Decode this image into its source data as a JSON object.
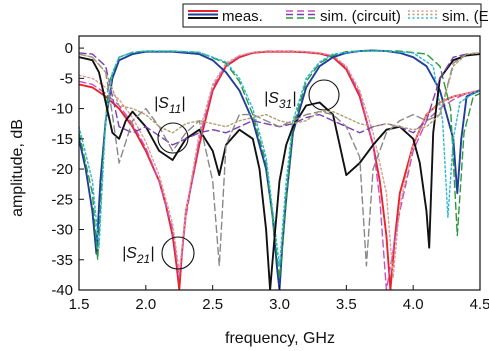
{
  "chart_data": {
    "type": "line",
    "xlabel": "frequency, GHz",
    "ylabel": "amplitude, dB",
    "xlim": [
      1.5,
      4.5
    ],
    "ylim": [
      -40,
      2
    ],
    "xticks": [
      "1.5",
      "2.0",
      "2.5",
      "3.0",
      "3.5",
      "4.0",
      "4.5"
    ],
    "yticks": [
      "0",
      "-5",
      "-10",
      "-15",
      "-20",
      "-25",
      "-30",
      "-35",
      "-40"
    ],
    "grid": false,
    "legend_position": "top",
    "legend": [
      {
        "label": "meas.",
        "style": "solid",
        "colors": [
          "#e8232a",
          "#1f3f9a",
          "#111111"
        ]
      },
      {
        "label": "sim. (circuit)",
        "style": "dashed",
        "colors": [
          "#c850c0",
          "#7a3fb0",
          "#2a9a3a"
        ]
      },
      {
        "label": "sim. (EM)",
        "style": "dotted",
        "colors": [
          "#e09a90",
          "#b0a070",
          "#2bb8d8"
        ]
      }
    ],
    "annotations": [
      {
        "text": "|S11|",
        "x": 2.18,
        "y": -17
      },
      {
        "text": "|S31|",
        "x": 3.4,
        "y": -9.5
      },
      {
        "text": "|S21|",
        "x": 2.26,
        "y": -36.5
      }
    ],
    "series": [
      {
        "param": "S21",
        "source": "meas.",
        "color": "#e8232a",
        "dash": "solid",
        "x": [
          1.5,
          1.6,
          1.7,
          1.8,
          1.9,
          2.0,
          2.1,
          2.15,
          2.2,
          2.23,
          2.25,
          2.27,
          2.3,
          2.4,
          2.5,
          2.6,
          2.7,
          2.8,
          2.9,
          3.0,
          3.1,
          3.2,
          3.3,
          3.4,
          3.5,
          3.6,
          3.7,
          3.75,
          3.8,
          3.83,
          3.86,
          3.9,
          4.0,
          4.1,
          4.2,
          4.3,
          4.4,
          4.5
        ],
        "y": [
          -6,
          -6.5,
          -8,
          -10,
          -13,
          -17,
          -22,
          -26,
          -31,
          -36,
          -40,
          -34,
          -27,
          -16,
          -7,
          -3,
          -1.5,
          -0.8,
          -0.6,
          -0.6,
          -0.6,
          -0.7,
          -0.9,
          -1.5,
          -3.5,
          -8,
          -16,
          -22,
          -31,
          -40,
          -32,
          -24,
          -16,
          -11,
          -9,
          -8,
          -7.5,
          -7
        ]
      },
      {
        "param": "S21",
        "source": "sim. (circuit)",
        "color": "#c850c0",
        "dash": "dashed",
        "x": [
          1.5,
          1.6,
          1.7,
          1.8,
          1.9,
          2.0,
          2.1,
          2.2,
          2.25,
          2.3,
          2.4,
          2.5,
          2.6,
          2.7,
          2.8,
          2.9,
          3.0,
          3.1,
          3.2,
          3.3,
          3.4,
          3.5,
          3.6,
          3.7,
          3.75,
          3.8,
          3.9,
          4.0,
          4.1,
          4.2,
          4.3,
          4.4,
          4.5
        ],
        "y": [
          -5.5,
          -6,
          -7.5,
          -9.5,
          -12.5,
          -16.5,
          -22,
          -30,
          -38,
          -28,
          -15,
          -6.5,
          -2.8,
          -1.3,
          -0.7,
          -0.5,
          -0.5,
          -0.5,
          -0.6,
          -0.8,
          -1.3,
          -3.2,
          -7.5,
          -16,
          -25,
          -40,
          -27,
          -17,
          -12,
          -10,
          -8.5,
          -7.5,
          -7
        ]
      },
      {
        "param": "S21",
        "source": "sim. (EM)",
        "color": "#e09a90",
        "dash": "dotted",
        "x": [
          1.5,
          1.6,
          1.7,
          1.8,
          1.9,
          2.0,
          2.1,
          2.2,
          2.25,
          2.3,
          2.4,
          2.5,
          2.6,
          2.7,
          2.8,
          2.9,
          3.0,
          3.1,
          3.2,
          3.3,
          3.4,
          3.5,
          3.6,
          3.7,
          3.8,
          3.85,
          3.9,
          4.0,
          4.1,
          4.2,
          4.3,
          4.4,
          4.5
        ],
        "y": [
          -4.5,
          -5,
          -6.5,
          -8.5,
          -11.5,
          -15.5,
          -21,
          -29,
          -37,
          -27,
          -14,
          -6,
          -2.5,
          -1.2,
          -0.7,
          -0.5,
          -0.5,
          -0.5,
          -0.6,
          -0.8,
          -1.2,
          -3,
          -7,
          -14,
          -24,
          -38,
          -26,
          -16,
          -11,
          -9,
          -8,
          -7.5,
          -7
        ]
      },
      {
        "param": "S31",
        "source": "meas.",
        "color": "#1f3f9a",
        "dash": "solid",
        "x": [
          1.5,
          1.55,
          1.6,
          1.63,
          1.66,
          1.7,
          1.75,
          1.8,
          1.9,
          2.0,
          2.2,
          2.4,
          2.5,
          2.6,
          2.7,
          2.8,
          2.9,
          2.95,
          2.98,
          3.0,
          3.02,
          3.05,
          3.1,
          3.2,
          3.3,
          3.4,
          3.5,
          3.6,
          3.7,
          3.8,
          3.9,
          4.0,
          4.1,
          4.2,
          4.3,
          4.33,
          4.36,
          4.4,
          4.5
        ],
        "y": [
          -15,
          -20,
          -27,
          -34,
          -22,
          -12,
          -5,
          -2,
          -1,
          -0.6,
          -0.6,
          -1,
          -2,
          -4,
          -7,
          -12,
          -20,
          -28,
          -36,
          -40,
          -33,
          -25,
          -14,
          -6.5,
          -3,
          -1.5,
          -0.8,
          -0.5,
          -0.4,
          -0.5,
          -0.8,
          -1.5,
          -3,
          -7,
          -15,
          -24,
          -15,
          -8,
          -7
        ]
      },
      {
        "param": "S31",
        "source": "sim. (circuit)",
        "color": "#2a9a3a",
        "dash": "dashed",
        "x": [
          1.5,
          1.6,
          1.64,
          1.68,
          1.72,
          1.8,
          1.9,
          2.0,
          2.2,
          2.4,
          2.6,
          2.7,
          2.8,
          2.9,
          3.0,
          3.05,
          3.1,
          3.2,
          3.3,
          3.4,
          3.5,
          3.7,
          3.9,
          4.1,
          4.2,
          4.28,
          4.33,
          4.38,
          4.45,
          4.5
        ],
        "y": [
          -14,
          -24,
          -35,
          -18,
          -6,
          -1.5,
          -0.7,
          -0.5,
          -0.5,
          -0.7,
          -2.5,
          -5.5,
          -11,
          -19,
          -38,
          -25,
          -13,
          -5.5,
          -2.5,
          -1.2,
          -0.6,
          -0.4,
          -0.5,
          -1,
          -3,
          -10,
          -31,
          -14,
          -8,
          -7.5
        ]
      },
      {
        "param": "S31",
        "source": "sim. (EM)",
        "color": "#2bb8d8",
        "dash": "dotted",
        "x": [
          1.5,
          1.6,
          1.65,
          1.7,
          1.75,
          1.8,
          1.9,
          2.0,
          2.2,
          2.4,
          2.6,
          2.7,
          2.8,
          2.9,
          3.0,
          3.05,
          3.1,
          3.2,
          3.3,
          3.4,
          3.6,
          3.8,
          4.0,
          4.15,
          4.22,
          4.26,
          4.3,
          4.35,
          4.45,
          4.5
        ],
        "y": [
          -13,
          -22,
          -33,
          -12,
          -4,
          -1.5,
          -0.7,
          -0.5,
          -0.5,
          -0.7,
          -2.3,
          -5,
          -10,
          -18,
          -36,
          -22,
          -12,
          -5,
          -2.3,
          -1,
          -0.5,
          -0.5,
          -0.8,
          -3,
          -12,
          -28,
          -15,
          -9,
          -7.5,
          -7
        ]
      },
      {
        "param": "S11",
        "source": "meas.",
        "color": "#111111",
        "dash": "solid",
        "x": [
          1.5,
          1.6,
          1.65,
          1.7,
          1.75,
          1.8,
          1.85,
          1.9,
          2.0,
          2.1,
          2.2,
          2.3,
          2.4,
          2.5,
          2.55,
          2.6,
          2.7,
          2.8,
          2.85,
          2.9,
          2.93,
          2.96,
          3.0,
          3.05,
          3.1,
          3.2,
          3.3,
          3.4,
          3.5,
          3.6,
          3.7,
          3.8,
          3.9,
          4.0,
          4.05,
          4.1,
          4.12,
          4.15,
          4.2,
          4.3,
          4.4,
          4.5
        ],
        "y": [
          -1.5,
          -2,
          -4,
          -9,
          -14,
          -15,
          -12,
          -10.5,
          -13,
          -17,
          -18.5,
          -15,
          -13.5,
          -17,
          -21,
          -16,
          -13.5,
          -15,
          -20,
          -30,
          -40,
          -32,
          -22,
          -16,
          -13,
          -9.5,
          -9,
          -11,
          -21,
          -19,
          -16,
          -13.5,
          -13,
          -15,
          -19,
          -27,
          -33,
          -14,
          -5,
          -2,
          -1.2,
          -1
        ]
      },
      {
        "param": "S11",
        "source": "sim. (circuit)",
        "color": "#7a3fb0",
        "dash": "dashed",
        "x": [
          1.5,
          1.6,
          1.7,
          1.75,
          1.8,
          1.9,
          2.0,
          2.1,
          2.2,
          2.3,
          2.4,
          2.5,
          2.6,
          2.7,
          2.8,
          2.9,
          3.0,
          3.1,
          3.2,
          3.3,
          3.4,
          3.5,
          3.6,
          3.7,
          3.8,
          3.9,
          4.0,
          4.1,
          4.2,
          4.3,
          4.4,
          4.5
        ],
        "y": [
          -0.8,
          -1,
          -3,
          -8,
          -13,
          -14,
          -13,
          -14.5,
          -16,
          -15,
          -14,
          -13.5,
          -14,
          -13,
          -12,
          -12.5,
          -13,
          -12.5,
          -11.5,
          -11,
          -12,
          -13,
          -14,
          -13,
          -12.5,
          -13,
          -14,
          -12,
          -5,
          -1.5,
          -1,
          -0.8
        ]
      },
      {
        "param": "S11",
        "source": "sim. (EM)",
        "color": "#888888",
        "dash": "dashed",
        "x": [
          1.5,
          1.6,
          1.7,
          1.75,
          1.8,
          1.9,
          2.0,
          2.1,
          2.2,
          2.3,
          2.4,
          2.5,
          2.55,
          2.6,
          2.7,
          2.8,
          2.9,
          3.0,
          3.1,
          3.2,
          3.3,
          3.4,
          3.5,
          3.6,
          3.65,
          3.7,
          3.8,
          3.9,
          4.0,
          4.1,
          4.2,
          4.3,
          4.4,
          4.5
        ],
        "y": [
          -1,
          -1.5,
          -4,
          -11,
          -19,
          -12,
          -10,
          -13,
          -17,
          -14,
          -12,
          -22,
          -36,
          -16,
          -11,
          -11,
          -12,
          -13,
          -12,
          -11,
          -10.5,
          -11,
          -13,
          -18,
          -36,
          -20,
          -14,
          -12,
          -11,
          -12,
          -11,
          -2.5,
          -1,
          -0.8
        ]
      },
      {
        "param": "S11",
        "source": "sim. (EM)",
        "color": "#b0a070",
        "dash": "dotted",
        "x": [
          1.5,
          1.6,
          1.7,
          1.8,
          1.9,
          2.0,
          2.1,
          2.2,
          2.3,
          2.4,
          2.5,
          2.6,
          2.7,
          2.8,
          2.9,
          3.0,
          3.1,
          3.2,
          3.3,
          3.4,
          3.5,
          3.6,
          3.7,
          3.8,
          3.9,
          4.0,
          4.1,
          4.2,
          4.3,
          4.4,
          4.5
        ],
        "y": [
          -1,
          -1.5,
          -4,
          -9.5,
          -10,
          -11,
          -13,
          -14,
          -12.5,
          -12,
          -12.5,
          -13,
          -12,
          -11.5,
          -11,
          -12,
          -12.5,
          -12,
          -10.5,
          -10.5,
          -11.5,
          -12.5,
          -13,
          -12.5,
          -13,
          -13.5,
          -13,
          -11,
          -3,
          -1,
          -0.8
        ]
      }
    ]
  }
}
